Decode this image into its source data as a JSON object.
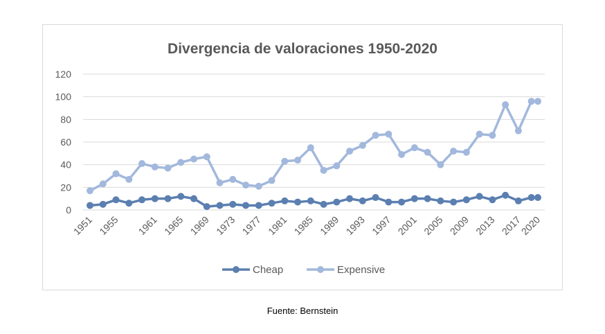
{
  "source_note": "Fuente: Bernstein",
  "chart_data": {
    "type": "line",
    "title": "Divergencia de valoraciones 1950-2020",
    "xlabel": "",
    "ylabel": "",
    "ylim": [
      0,
      120
    ],
    "yticks": [
      "0",
      "20",
      "40",
      "60",
      "80",
      "100",
      "120"
    ],
    "grid": true,
    "legend": "bottom",
    "x": [
      1951,
      1953,
      1955,
      1957,
      1959,
      1961,
      1963,
      1965,
      1967,
      1969,
      1971,
      1973,
      1975,
      1977,
      1979,
      1981,
      1983,
      1985,
      1987,
      1989,
      1991,
      1993,
      1995,
      1997,
      1999,
      2001,
      2003,
      2005,
      2007,
      2009,
      2011,
      2013,
      2015,
      2017,
      2019,
      2020
    ],
    "xticklabels": [
      "1951",
      "1955",
      "1961",
      "1965",
      "1969",
      "1973",
      "1977",
      "1981",
      "1985",
      "1989",
      "1993",
      "1997",
      "2001",
      "2005",
      "2009",
      "2013",
      "2017",
      "2020"
    ],
    "series": [
      {
        "name": "Cheap",
        "color": "#5b7fb0",
        "values": [
          4,
          5,
          9,
          6,
          9,
          10,
          10,
          12,
          10,
          3,
          4,
          5,
          4,
          4,
          6,
          8,
          7,
          8,
          5,
          7,
          10,
          8,
          11,
          7,
          7,
          10,
          10,
          8,
          7,
          9,
          12,
          9,
          13,
          8,
          11,
          11
        ]
      },
      {
        "name": "Expensive",
        "color": "#a2b8dc",
        "values": [
          17,
          23,
          32,
          27,
          41,
          38,
          37,
          42,
          45,
          47,
          24,
          27,
          22,
          21,
          26,
          43,
          44,
          55,
          35,
          39,
          52,
          57,
          66,
          67,
          49,
          55,
          51,
          40,
          52,
          51,
          67,
          66,
          93,
          70,
          96,
          96
        ]
      }
    ]
  }
}
